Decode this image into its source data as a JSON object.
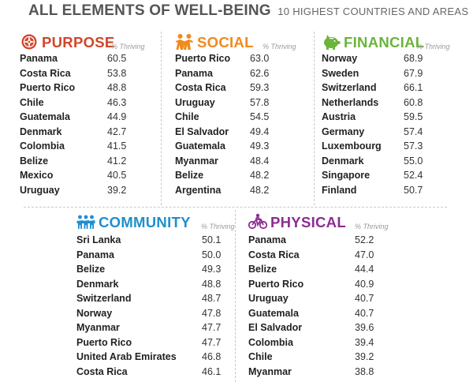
{
  "title": {
    "main": "ALL ELEMENTS OF WELL-BEING",
    "subtitle": "10 HIGHEST COUNTRIES AND AREAS"
  },
  "colors": {
    "purpose": "#d2462b",
    "social": "#f08a1c",
    "financial": "#6bb43a",
    "community": "#1f8fcf",
    "physical": "#8b2d91"
  },
  "chart_data": {
    "type": "table",
    "value_label": "% Thriving",
    "panels": [
      {
        "name": "PURPOSE",
        "icon": "compass-icon",
        "value_label": "% Thriving",
        "rows": [
          {
            "country": "Panama",
            "value": "60.5"
          },
          {
            "country": "Costa Rica",
            "value": "53.8"
          },
          {
            "country": "Puerto Rico",
            "value": "48.8"
          },
          {
            "country": "Chile",
            "value": "46.3"
          },
          {
            "country": "Guatemala",
            "value": "44.9"
          },
          {
            "country": "Denmark",
            "value": "42.7"
          },
          {
            "country": "Colombia",
            "value": "41.5"
          },
          {
            "country": "Belize",
            "value": "41.2"
          },
          {
            "country": "Mexico",
            "value": "40.5"
          },
          {
            "country": "Uruguay",
            "value": "39.2"
          }
        ]
      },
      {
        "name": "SOCIAL",
        "icon": "people-pair-icon",
        "value_label": "% Thriving",
        "rows": [
          {
            "country": "Puerto Rico",
            "value": "63.0"
          },
          {
            "country": "Panama",
            "value": "62.6"
          },
          {
            "country": "Costa Rica",
            "value": "59.3"
          },
          {
            "country": "Uruguay",
            "value": "57.8"
          },
          {
            "country": "Chile",
            "value": "54.5"
          },
          {
            "country": "El Salvador",
            "value": "49.4"
          },
          {
            "country": "Guatemala",
            "value": "49.3"
          },
          {
            "country": "Myanmar",
            "value": "48.4"
          },
          {
            "country": "Belize",
            "value": "48.2"
          },
          {
            "country": "Argentina",
            "value": "48.2"
          }
        ]
      },
      {
        "name": "FINANCIAL",
        "icon": "piggy-bank-icon",
        "value_label": "% Thriving",
        "rows": [
          {
            "country": "Norway",
            "value": "68.9"
          },
          {
            "country": "Sweden",
            "value": "67.9"
          },
          {
            "country": "Switzerland",
            "value": "66.1"
          },
          {
            "country": "Netherlands",
            "value": "60.8"
          },
          {
            "country": "Austria",
            "value": "59.5"
          },
          {
            "country": "Germany",
            "value": "57.4"
          },
          {
            "country": "Luxembourg",
            "value": "57.3"
          },
          {
            "country": "Denmark",
            "value": "55.0"
          },
          {
            "country": "Singapore",
            "value": "52.4"
          },
          {
            "country": "Finland",
            "value": "50.7"
          }
        ]
      },
      {
        "name": "COMMUNITY",
        "icon": "community-people-icon",
        "value_label": "% Thriving",
        "rows": [
          {
            "country": "Sri Lanka",
            "value": "50.1"
          },
          {
            "country": "Panama",
            "value": "50.0"
          },
          {
            "country": "Belize",
            "value": "49.3"
          },
          {
            "country": "Denmark",
            "value": "48.8"
          },
          {
            "country": "Switzerland",
            "value": "48.7"
          },
          {
            "country": "Norway",
            "value": "47.8"
          },
          {
            "country": "Myanmar",
            "value": "47.7"
          },
          {
            "country": "Puerto Rico",
            "value": "47.7"
          },
          {
            "country": "United Arab Emirates",
            "value": "46.8"
          },
          {
            "country": "Costa Rica",
            "value": "46.1"
          }
        ]
      },
      {
        "name": "PHYSICAL",
        "icon": "bicycle-icon",
        "value_label": "% Thriving",
        "rows": [
          {
            "country": "Panama",
            "value": "52.2"
          },
          {
            "country": "Costa Rica",
            "value": "47.0"
          },
          {
            "country": "Belize",
            "value": "44.4"
          },
          {
            "country": "Puerto Rico",
            "value": "40.9"
          },
          {
            "country": "Uruguay",
            "value": "40.7"
          },
          {
            "country": "Guatemala",
            "value": "40.7"
          },
          {
            "country": "El Salvador",
            "value": "39.6"
          },
          {
            "country": "Colombia",
            "value": "39.4"
          },
          {
            "country": "Chile",
            "value": "39.2"
          },
          {
            "country": "Myanmar",
            "value": "38.8"
          }
        ]
      }
    ]
  }
}
